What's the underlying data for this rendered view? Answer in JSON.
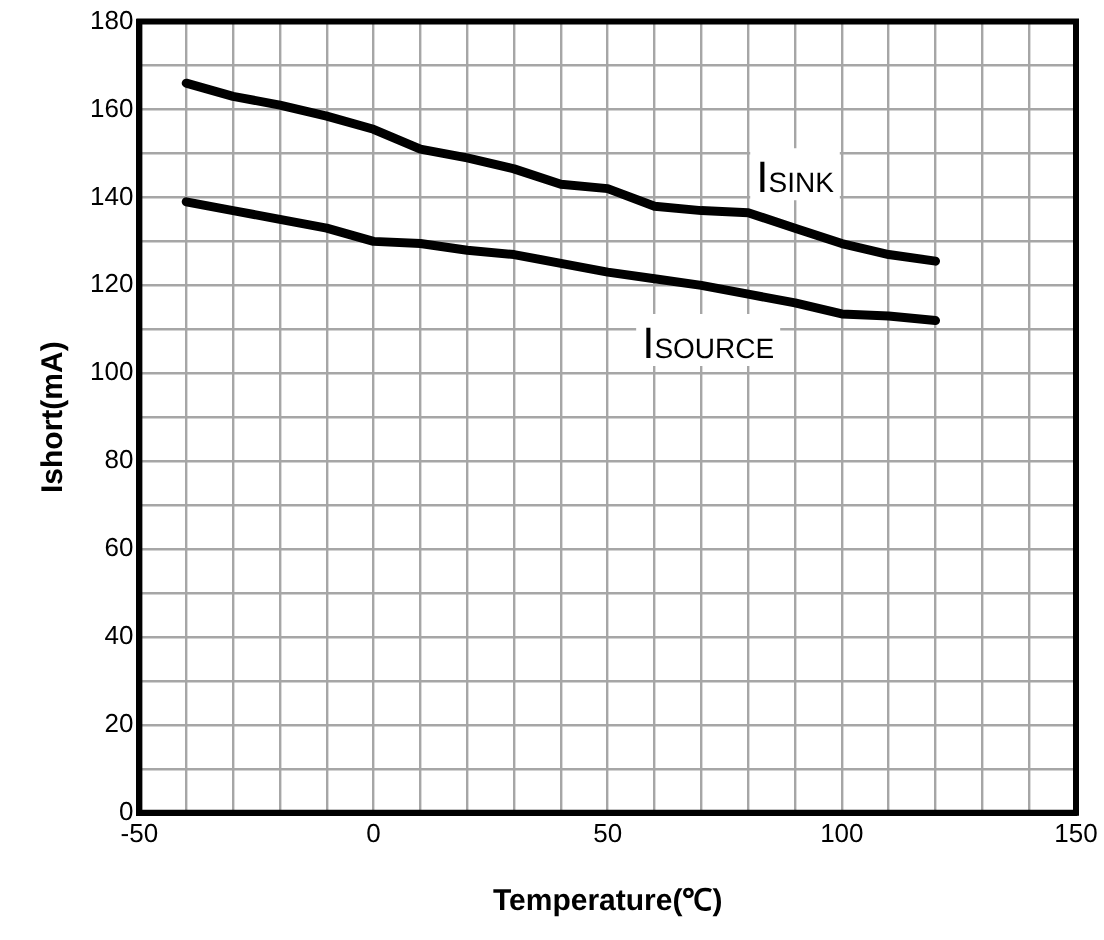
{
  "chart_data": {
    "type": "line",
    "xlabel": "Temperature(℃)",
    "ylabel": "Ishort(mA)",
    "x": [
      -40,
      -30,
      -20,
      -10,
      0,
      10,
      20,
      30,
      40,
      50,
      60,
      70,
      80,
      90,
      100,
      110,
      120
    ],
    "series": [
      {
        "name": "I$_{SINK}$",
        "color": "#000000",
        "values": [
          166,
          163,
          161,
          158.5,
          155.5,
          151,
          149,
          146.5,
          143,
          142,
          138,
          137,
          136.5,
          133,
          129.5,
          127,
          125.5
        ]
      },
      {
        "name": "I$_{SOURCE}$",
        "color": "#000000",
        "values": [
          139,
          137,
          135,
          133,
          130,
          129.5,
          128,
          127,
          125,
          123,
          121.5,
          120,
          118,
          116,
          113.5,
          113,
          112
        ]
      }
    ],
    "xlim": [
      -50,
      150
    ],
    "xticks": [
      -50,
      {
        "value": -40,
        "label": null
      },
      {
        "value": -30,
        "label": null
      },
      {
        "value": -20,
        "label": null
      },
      {
        "value": -10,
        "label": null
      },
      0,
      {
        "value": 10,
        "label": null
      },
      {
        "value": 20,
        "label": null
      },
      {
        "value": 30,
        "label": null
      },
      {
        "value": 40,
        "label": null
      },
      50,
      {
        "value": 60,
        "label": null
      },
      {
        "value": 70,
        "label": null
      },
      {
        "value": 80,
        "label": null
      },
      {
        "value": 90,
        "label": null
      },
      100,
      {
        "value": 110,
        "label": null
      },
      {
        "value": 120,
        "label": null
      },
      {
        "value": 130,
        "label": null
      },
      {
        "value": 140,
        "label": null
      },
      150
    ],
    "ylim": [
      0,
      180
    ],
    "yticks": [
      0,
      {
        "value": 10,
        "label": null
      },
      20,
      {
        "value": 30,
        "label": null
      },
      40,
      {
        "value": 50,
        "label": null
      },
      60,
      {
        "value": 70,
        "label": null
      },
      80,
      {
        "value": 90,
        "label": null
      },
      100,
      {
        "value": 110,
        "label": null
      },
      120,
      {
        "value": 130,
        "label": null
      },
      140,
      {
        "value": 150,
        "label": null
      },
      160,
      {
        "value": 170,
        "label": null
      },
      180
    ],
    "grid": true,
    "legend": false,
    "marker": "none",
    "line_style": "solid"
  }
}
